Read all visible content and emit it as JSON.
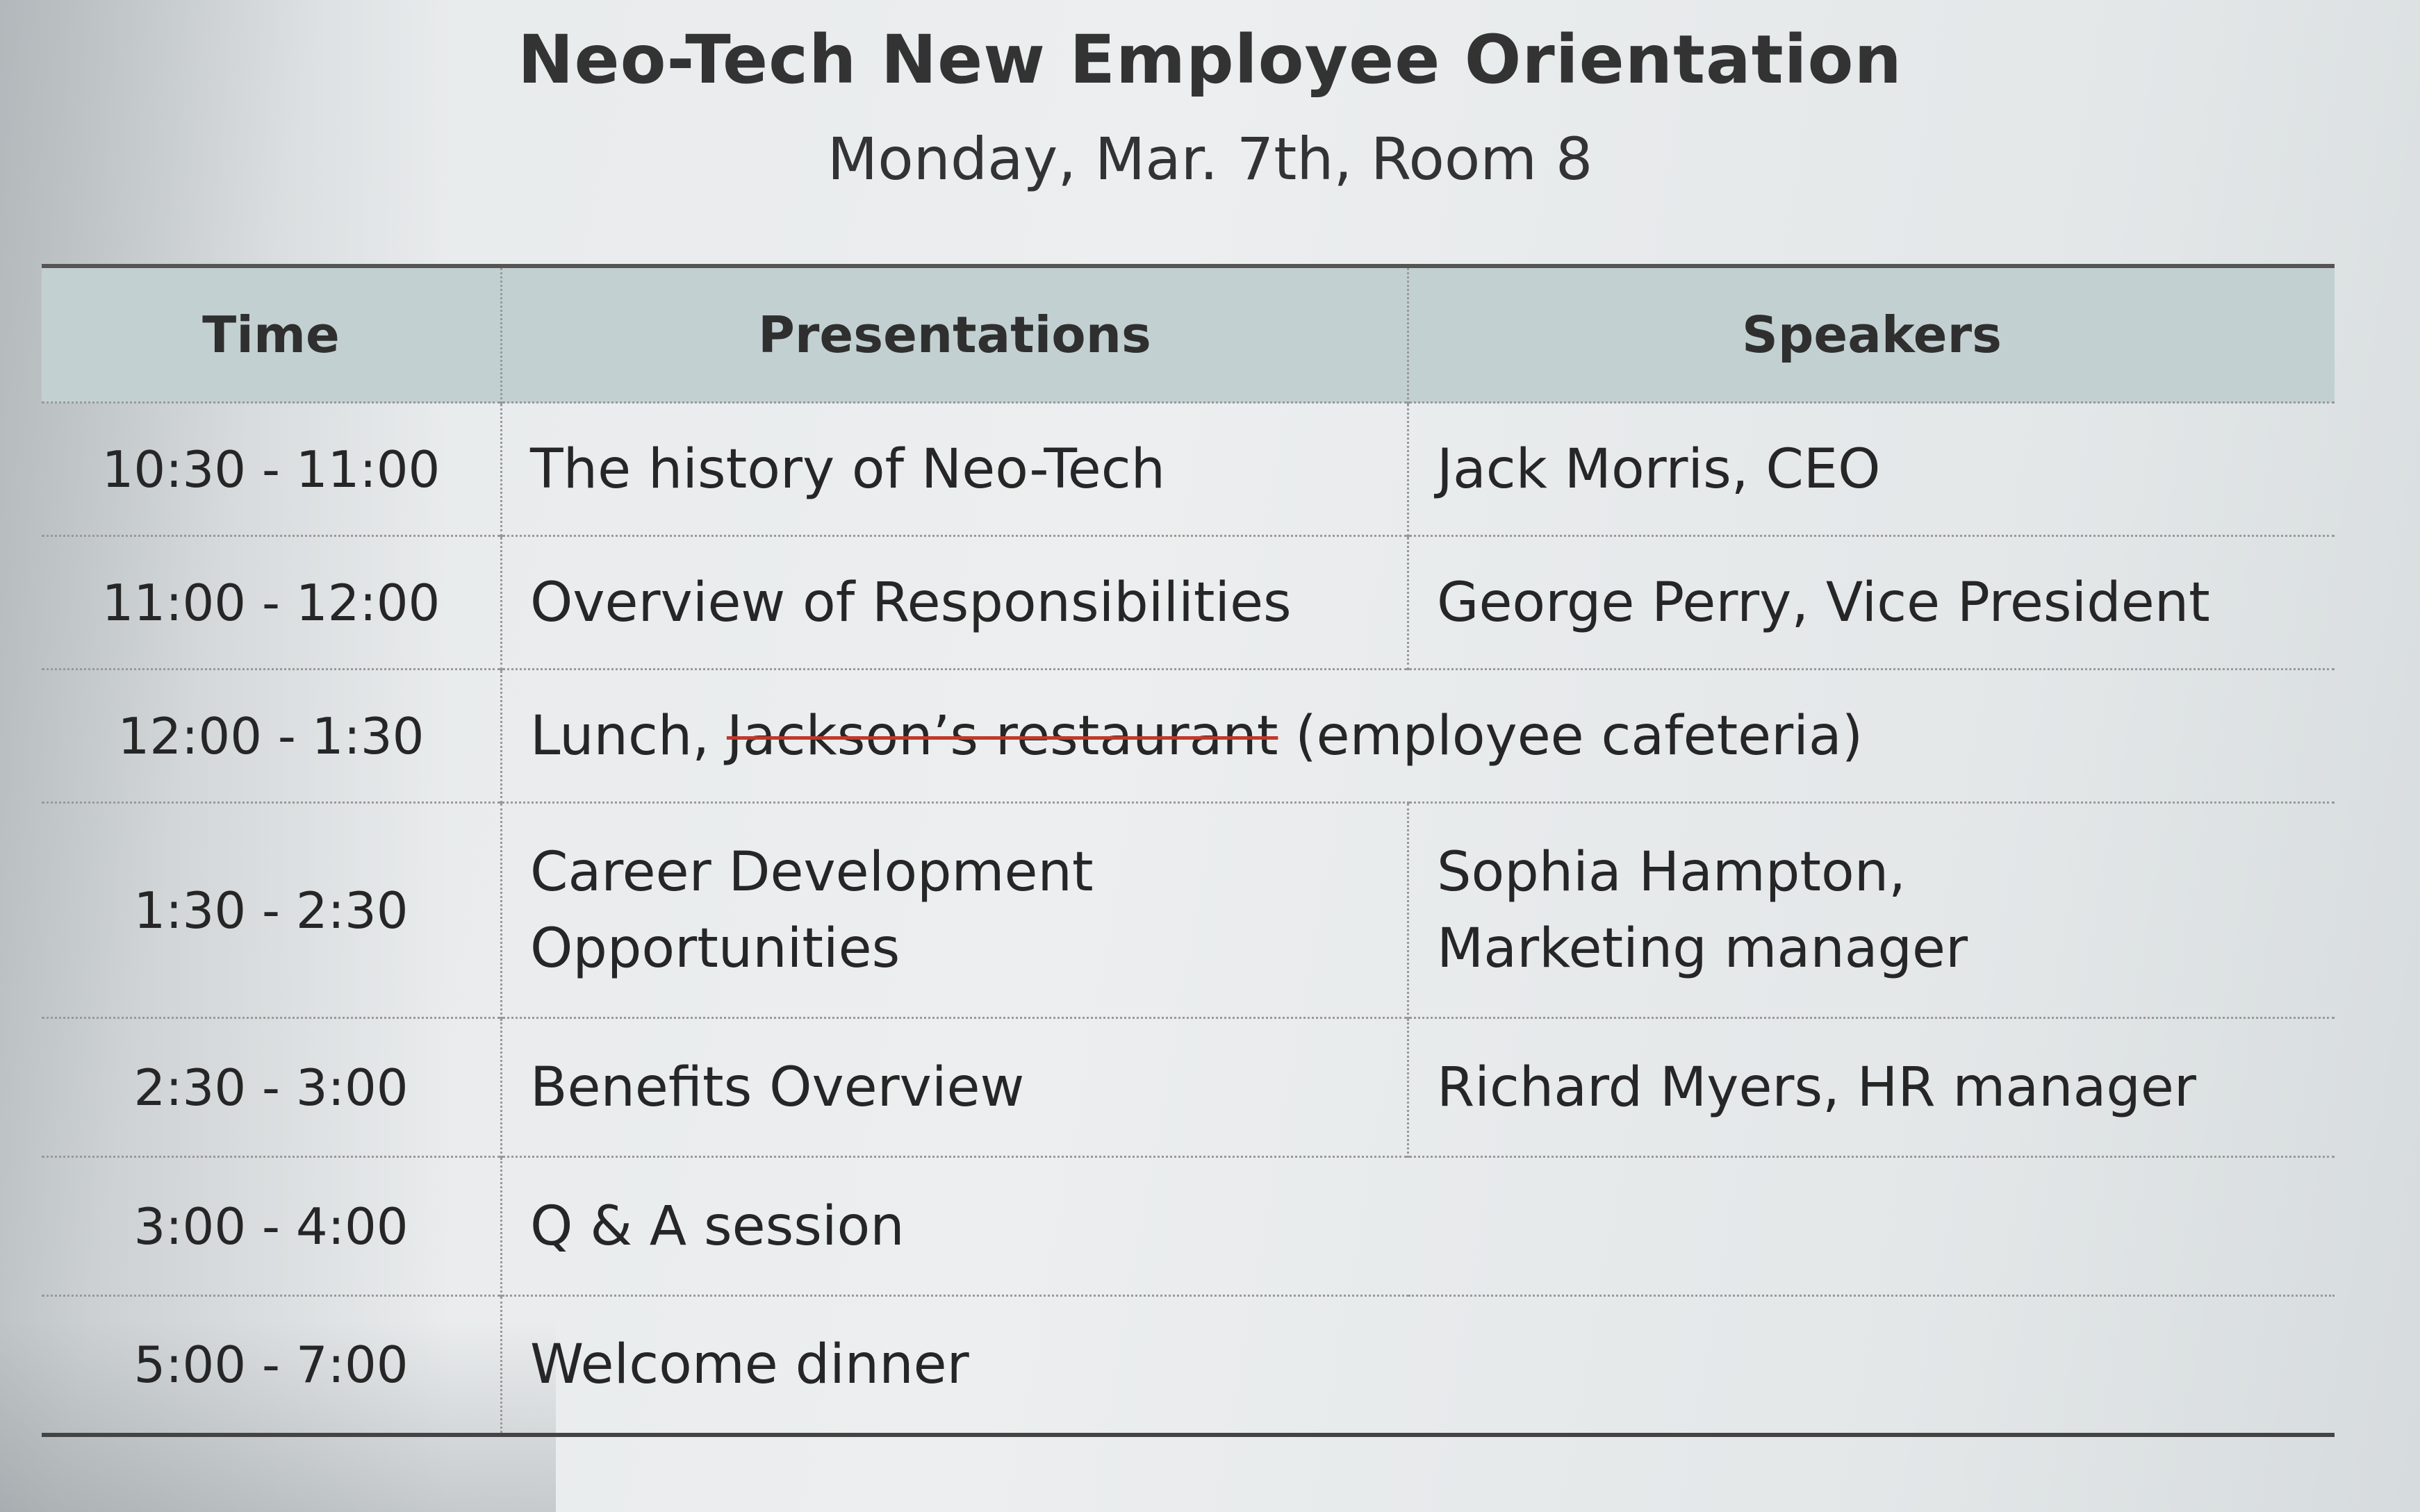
{
  "header": {
    "title": "Neo-Tech New Employee Orientation",
    "subtitle": "Monday, Mar. 7th, Room 8"
  },
  "table": {
    "columns": [
      "Time",
      "Presentations",
      "Speakers"
    ],
    "rows": [
      {
        "time": "10:30 - 11:00",
        "presentation": "The history of Neo-Tech",
        "speaker": "Jack Morris, CEO"
      },
      {
        "time": "11:00 - 12:00",
        "presentation": "Overview of Responsibilities",
        "speaker": "George Perry, Vice President"
      },
      {
        "time": "12:00 - 1:30",
        "presentation_prefix": "Lunch, ",
        "presentation_struck": "Jackson’s restaurant",
        "presentation_suffix": " (employee cafeteria)"
      },
      {
        "time": "1:30 - 2:30",
        "presentation_line1": "Career Development",
        "presentation_line2": "Opportunities",
        "speaker_line1": "Sophia Hampton,",
        "speaker_line2": "Marketing manager"
      },
      {
        "time": "2:30 - 3:00",
        "presentation": "Benefits Overview",
        "speaker": "Richard Myers, HR manager"
      },
      {
        "time": "3:00 - 4:00",
        "presentation": "Q & A session"
      },
      {
        "time": "5:00 - 7:00",
        "presentation": "Welcome dinner"
      }
    ]
  },
  "colors": {
    "header_bg": "#c3d0d1",
    "strike": "#c0392b"
  }
}
